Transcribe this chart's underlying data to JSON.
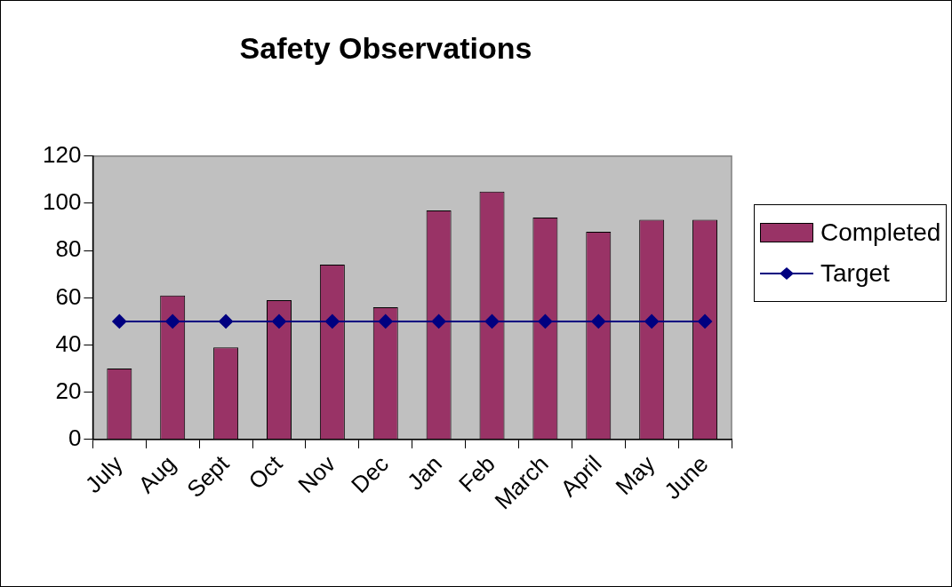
{
  "chart_data": {
    "type": "bar",
    "title": "Safety Observations",
    "categories": [
      "July",
      "Aug",
      "Sept",
      "Oct",
      "Nov",
      "Dec",
      "Jan",
      "Feb",
      "March",
      "April",
      "May",
      "June"
    ],
    "series": [
      {
        "name": "Completed",
        "color": "#993366",
        "values": [
          30,
          61,
          39,
          59,
          74,
          56,
          97,
          105,
          94,
          88,
          93,
          93
        ]
      },
      {
        "name": "Target",
        "type": "line",
        "color": "#000080",
        "marker": "diamond",
        "values": [
          50,
          50,
          50,
          50,
          50,
          50,
          50,
          50,
          50,
          50,
          50,
          50
        ]
      }
    ],
    "ylim": [
      0,
      120
    ],
    "yticks": [
      0,
      20,
      40,
      60,
      80,
      100,
      120
    ],
    "grid": false,
    "legend": "right"
  }
}
